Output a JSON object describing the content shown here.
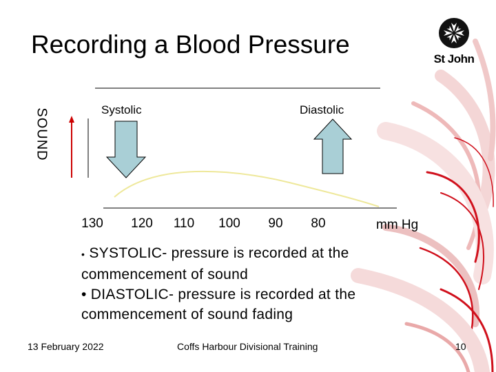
{
  "slide": {
    "title": "Recording a Blood Pressure",
    "logo": {
      "text": "St John",
      "icon": "maltese-cross-icon"
    }
  },
  "diagram": {
    "labels": {
      "systolic": "Systolic",
      "diastolic": "Diastolic",
      "sound": "SOUND"
    },
    "ticks": [
      "130",
      "120",
      "110",
      "100",
      "90",
      "80"
    ],
    "unit": "mm Hg",
    "colors": {
      "arrow_fill": "#a9cfd6",
      "curve": "#eee89a",
      "sound_arrow": "#cc0000"
    }
  },
  "bullets": [
    {
      "marker": "•",
      "text": "SYSTOLIC- pressure is recorded at the commencement of sound"
    },
    {
      "marker": "•",
      "text": "DIASTOLIC- pressure is recorded at the commencement of sound fading"
    }
  ],
  "footer": {
    "date": "13 February 2022",
    "center": "Coffs Harbour Divisional Training",
    "page": "10"
  },
  "colors": {
    "swirl_red": "#d0101c",
    "swirl_light": "#f2d0d0"
  }
}
